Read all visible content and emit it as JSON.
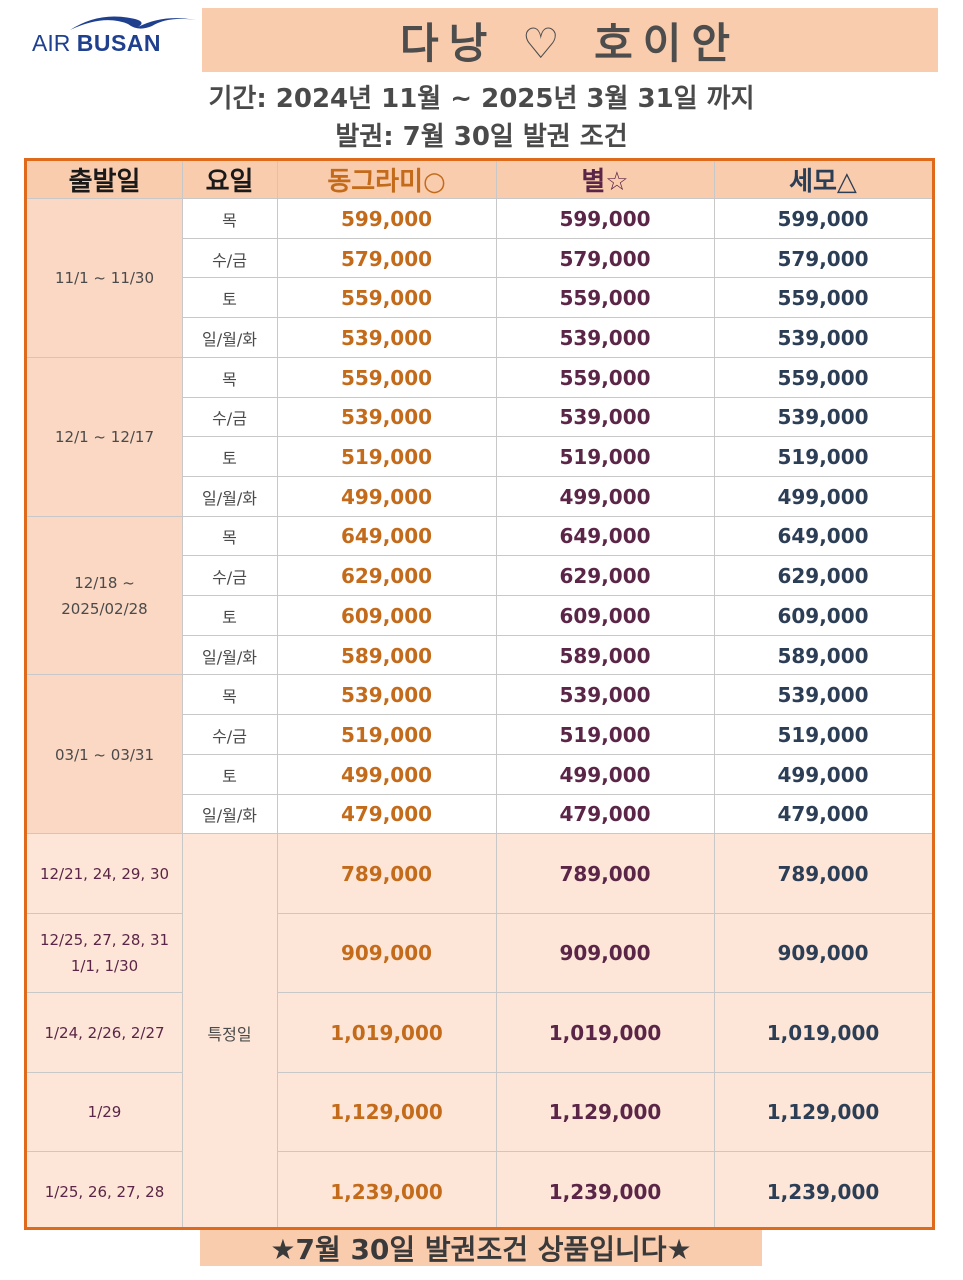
{
  "logo": {
    "prefix": "AIR",
    "brand": "BUSAN"
  },
  "title": "다낭 ♡ 호이안",
  "period": "기간: 2024년 11월 ~ 2025년 3월 31일 까지",
  "ticketing": "발권: 7월 30일 발권 조건",
  "table": {
    "headers": {
      "date": "출발일",
      "day": "요일",
      "dong": "동그라미○",
      "byeol": "별☆",
      "semo": "세모△"
    },
    "groups": [
      {
        "dates": [
          "11/1 ~ 11/30"
        ],
        "rows": [
          {
            "day": "목",
            "dong": "599,000",
            "byeol": "599,000",
            "semo": "599,000"
          },
          {
            "day": "수/금",
            "dong": "579,000",
            "byeol": "579,000",
            "semo": "579,000"
          },
          {
            "day": "토",
            "dong": "559,000",
            "byeol": "559,000",
            "semo": "559,000"
          },
          {
            "day": "일/월/화",
            "dong": "539,000",
            "byeol": "539,000",
            "semo": "539,000"
          }
        ]
      },
      {
        "dates": [
          "12/1 ~ 12/17"
        ],
        "rows": [
          {
            "day": "목",
            "dong": "559,000",
            "byeol": "559,000",
            "semo": "559,000"
          },
          {
            "day": "수/금",
            "dong": "539,000",
            "byeol": "539,000",
            "semo": "539,000"
          },
          {
            "day": "토",
            "dong": "519,000",
            "byeol": "519,000",
            "semo": "519,000"
          },
          {
            "day": "일/월/화",
            "dong": "499,000",
            "byeol": "499,000",
            "semo": "499,000"
          }
        ]
      },
      {
        "dates": [
          "12/18 ~",
          "2025/02/28"
        ],
        "rows": [
          {
            "day": "목",
            "dong": "649,000",
            "byeol": "649,000",
            "semo": "649,000"
          },
          {
            "day": "수/금",
            "dong": "629,000",
            "byeol": "629,000",
            "semo": "629,000"
          },
          {
            "day": "토",
            "dong": "609,000",
            "byeol": "609,000",
            "semo": "609,000"
          },
          {
            "day": "일/월/화",
            "dong": "589,000",
            "byeol": "589,000",
            "semo": "589,000"
          }
        ]
      },
      {
        "dates": [
          "03/1 ~ 03/31"
        ],
        "rows": [
          {
            "day": "목",
            "dong": "539,000",
            "byeol": "539,000",
            "semo": "539,000"
          },
          {
            "day": "수/금",
            "dong": "519,000",
            "byeol": "519,000",
            "semo": "519,000"
          },
          {
            "day": "토",
            "dong": "499,000",
            "byeol": "499,000",
            "semo": "499,000"
          },
          {
            "day": "일/월/화",
            "dong": "479,000",
            "byeol": "479,000",
            "semo": "479,000"
          }
        ]
      }
    ],
    "special_label": "특정일",
    "special": [
      {
        "dates": [
          "12/21, 24, 29, 30"
        ],
        "dong": "789,000",
        "byeol": "789,000",
        "semo": "789,000"
      },
      {
        "dates": [
          "12/25, 27, 28, 31",
          "1/1, 1/30"
        ],
        "dong": "909,000",
        "byeol": "909,000",
        "semo": "909,000"
      },
      {
        "dates": [
          "1/24, 2/26, 2/27"
        ],
        "dong": "1,019,000",
        "byeol": "1,019,000",
        "semo": "1,019,000"
      },
      {
        "dates": [
          "1/29"
        ],
        "dong": "1,129,000",
        "byeol": "1,129,000",
        "semo": "1,129,000"
      },
      {
        "dates": [
          "1/25, 26, 27, 28"
        ],
        "dong": "1,239,000",
        "byeol": "1,239,000",
        "semo": "1,239,000"
      }
    ]
  },
  "footer": "★7월 30일 발권조건 상품입니다★",
  "colors": {
    "border": "#e06a1b",
    "band": "#f9ccae",
    "date_fill": "#fbd8c3",
    "special_fill": "#fde6d8",
    "dong": "#c36b1a",
    "byeol": "#5a2546",
    "semo": "#2c3e55",
    "logo": "#1f3f8f"
  }
}
